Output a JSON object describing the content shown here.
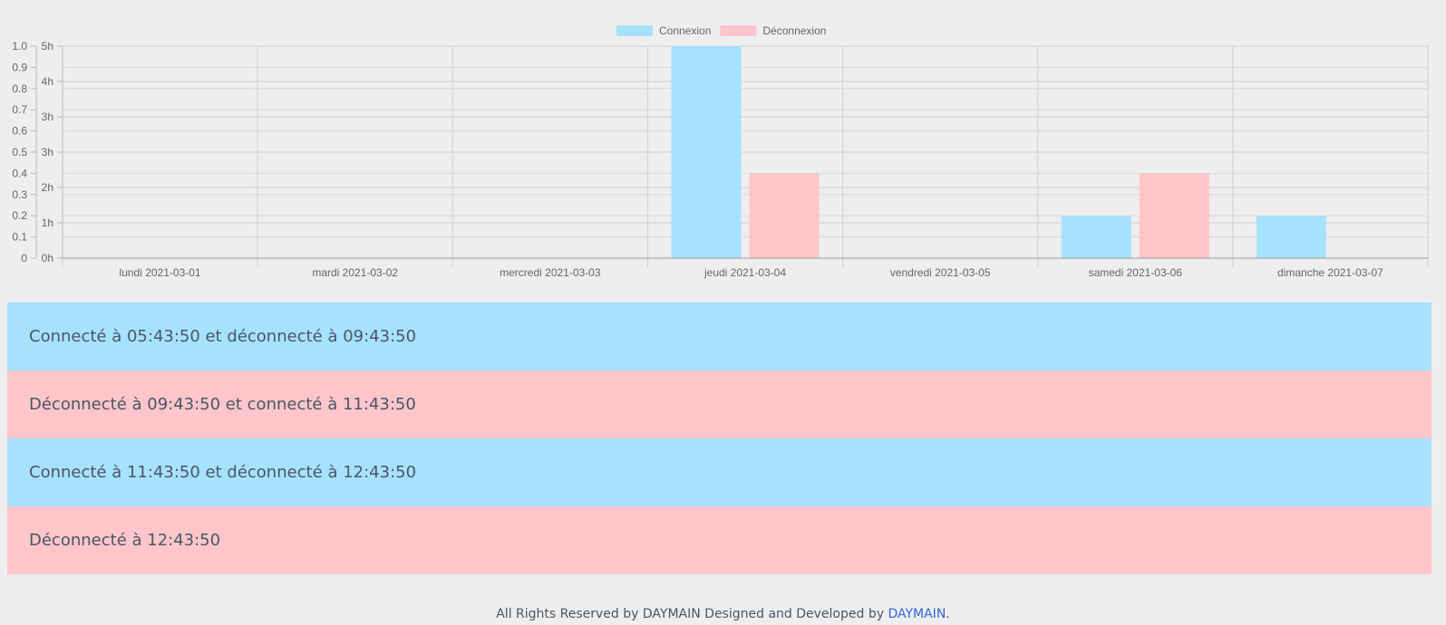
{
  "chart_data": {
    "type": "bar",
    "categories": [
      "lundi 2021-03-01",
      "mardi 2021-03-02",
      "mercredi 2021-03-03",
      "jeudi 2021-03-04",
      "vendredi 2021-03-05",
      "samedi 2021-03-06",
      "dimanche 2021-03-07"
    ],
    "series": [
      {
        "name": "Connexion",
        "color": "#a7e2fd",
        "values": [
          0,
          0,
          0,
          5,
          0,
          1,
          1
        ]
      },
      {
        "name": "Déconnexion",
        "color": "#fec6ca",
        "values": [
          0,
          0,
          0,
          2,
          0,
          2,
          0
        ]
      }
    ],
    "ylim": [
      0,
      5
    ],
    "y_ticks_left": [
      "0",
      "0.1",
      "0.2",
      "0.3",
      "0.4",
      "0.5",
      "0.6",
      "0.7",
      "0.8",
      "0.9",
      "1.0"
    ],
    "y_ticks_right": [
      "0h",
      "1h",
      "2h",
      "3h",
      "3h",
      "4h",
      "5h"
    ],
    "legend_position": "top-center",
    "grid": true
  },
  "log": [
    {
      "text": "Connecté à 05:43:50 et déconnecté à 09:43:50",
      "color": "#a7e2fd"
    },
    {
      "text": "Déconnecté à 09:43:50 et connecté à 11:43:50",
      "color": "#fec6ca"
    },
    {
      "text": "Connecté à 11:43:50 et déconnecté à 12:43:50",
      "color": "#a7e2fd"
    },
    {
      "text": "Déconnecté à 12:43:50",
      "color": "#fec6ca"
    }
  ],
  "footer": {
    "prefix": "All Rights Reserved by DAYMAIN Designed and Developed by ",
    "link": "DAYMAIN",
    "suffix": "."
  }
}
